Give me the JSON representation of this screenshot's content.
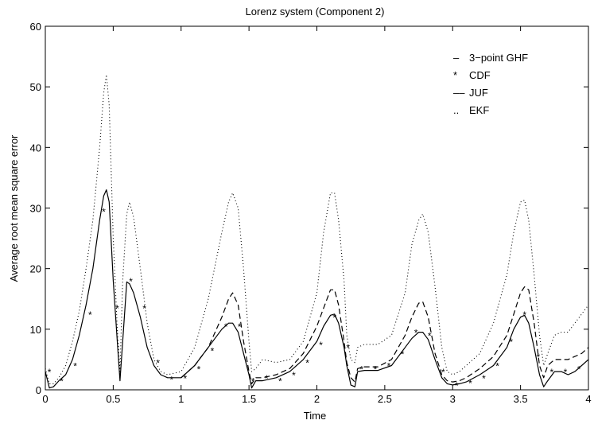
{
  "chart_data": {
    "type": "line",
    "title": "Lorenz system (Component 2)",
    "xlabel": "Time",
    "ylabel": "Average root mean square error",
    "xlim": [
      0,
      4
    ],
    "ylim": [
      0,
      60
    ],
    "xticks": [
      "0",
      "0.5",
      "1",
      "1.5",
      "2",
      "2.5",
      "3",
      "3.5",
      "4"
    ],
    "yticks": [
      "0",
      "10",
      "20",
      "30",
      "40",
      "50",
      "60"
    ],
    "grid": false,
    "legend_position": "top-right",
    "legend": [
      {
        "symbol": "–",
        "label": "3−point GHF"
      },
      {
        "symbol": "*",
        "label": "CDF"
      },
      {
        "symbol": "––",
        "label": "JUF"
      },
      {
        "symbol": "..",
        "label": "EKF"
      }
    ],
    "series": [
      {
        "name": "3−point GHF",
        "style": "solid",
        "x": [
          0,
          0.03,
          0.06,
          0.1,
          0.15,
          0.2,
          0.25,
          0.3,
          0.35,
          0.4,
          0.43,
          0.45,
          0.47,
          0.5,
          0.53,
          0.55,
          0.57,
          0.6,
          0.62,
          0.65,
          0.7,
          0.75,
          0.8,
          0.85,
          0.9,
          1.0,
          1.1,
          1.2,
          1.3,
          1.35,
          1.38,
          1.42,
          1.46,
          1.5,
          1.52,
          1.55,
          1.6,
          1.7,
          1.8,
          1.9,
          2.0,
          2.05,
          2.1,
          2.13,
          2.16,
          2.2,
          2.22,
          2.25,
          2.28,
          2.3,
          2.35,
          2.45,
          2.55,
          2.65,
          2.7,
          2.75,
          2.78,
          2.82,
          2.87,
          2.92,
          2.96,
          3.0,
          3.05,
          3.1,
          3.2,
          3.3,
          3.4,
          3.45,
          3.5,
          3.53,
          3.56,
          3.6,
          3.64,
          3.67,
          3.7,
          3.75,
          3.8,
          3.85,
          3.9,
          3.95,
          4.0
        ],
        "y": [
          3,
          0.3,
          0.5,
          1.5,
          2.5,
          5,
          9,
          14,
          20,
          28,
          32,
          33,
          31,
          18,
          8,
          1.5,
          8,
          17.8,
          17.5,
          16,
          12,
          7,
          4,
          2.5,
          2,
          2,
          4,
          7,
          10,
          11,
          11,
          9.5,
          6,
          2.5,
          0.3,
          1.5,
          1.5,
          2,
          3,
          5,
          8,
          10.5,
          12.3,
          12.5,
          11,
          7,
          4,
          0.8,
          0.5,
          3,
          3.2,
          3.2,
          4,
          7,
          8.5,
          9.5,
          9.5,
          8.3,
          5,
          2,
          1,
          0.8,
          1,
          1.3,
          2.5,
          4,
          7,
          10,
          12,
          12.3,
          11,
          7,
          2.5,
          0.5,
          1.5,
          3,
          3,
          2.5,
          3,
          4,
          5
        ]
      },
      {
        "name": "JUF",
        "style": "dashed",
        "x": [
          1.0,
          1.1,
          1.2,
          1.3,
          1.35,
          1.38,
          1.42,
          1.46,
          1.5,
          1.52,
          1.55,
          1.6,
          1.7,
          1.8,
          1.9,
          2.0,
          2.05,
          2.1,
          2.13,
          2.16,
          2.2,
          2.22,
          2.25,
          2.28,
          2.3,
          2.35,
          2.45,
          2.55,
          2.65,
          2.7,
          2.75,
          2.78,
          2.82,
          2.87,
          2.92,
          2.96,
          3.0,
          3.05,
          3.1,
          3.2,
          3.3,
          3.4,
          3.45,
          3.5,
          3.53,
          3.56,
          3.6,
          3.64,
          3.67,
          3.7,
          3.75,
          3.8,
          3.85,
          3.9,
          3.95,
          4.0
        ],
        "y": [
          2,
          4,
          7,
          12,
          15,
          16,
          14,
          8,
          3,
          1,
          2,
          2,
          2.5,
          3.5,
          6,
          10.5,
          13.5,
          16.5,
          16.5,
          14,
          8,
          4.5,
          2,
          1.3,
          3.5,
          3.8,
          3.8,
          5,
          9,
          12,
          14.3,
          14.5,
          12,
          6,
          2.5,
          1.5,
          1.3,
          1.5,
          2,
          3.5,
          5.5,
          9,
          12.5,
          16,
          17,
          16.5,
          11,
          4,
          2,
          4,
          5,
          5,
          5,
          5.5,
          6,
          7
        ]
      },
      {
        "name": "EKF",
        "style": "dotted",
        "x": [
          0,
          0.03,
          0.06,
          0.1,
          0.15,
          0.2,
          0.25,
          0.3,
          0.35,
          0.4,
          0.43,
          0.45,
          0.47,
          0.5,
          0.53,
          0.55,
          0.57,
          0.6,
          0.62,
          0.65,
          0.7,
          0.75,
          0.8,
          0.85,
          0.9,
          1.0,
          1.1,
          1.2,
          1.3,
          1.35,
          1.38,
          1.42,
          1.46,
          1.5,
          1.52,
          1.55,
          1.6,
          1.7,
          1.8,
          1.9,
          2.0,
          2.05,
          2.1,
          2.13,
          2.16,
          2.2,
          2.22,
          2.25,
          2.28,
          2.3,
          2.35,
          2.45,
          2.55,
          2.65,
          2.7,
          2.75,
          2.78,
          2.82,
          2.87,
          2.92,
          2.96,
          3.0,
          3.05,
          3.1,
          3.2,
          3.3,
          3.4,
          3.45,
          3.5,
          3.53,
          3.56,
          3.6,
          3.64,
          3.67,
          3.7,
          3.75,
          3.8,
          3.85,
          3.9,
          3.95,
          4.0
        ],
        "y": [
          3.5,
          1,
          1,
          2,
          4,
          8,
          13,
          20,
          28,
          40,
          49,
          52,
          47,
          25,
          10,
          3,
          18,
          29,
          31,
          28.5,
          20,
          11,
          5,
          3,
          2.5,
          3,
          7,
          15,
          26,
          31,
          32.5,
          30,
          20,
          8,
          3,
          3.5,
          5,
          4.5,
          5,
          8,
          16,
          26,
          32.5,
          32.5,
          28,
          18,
          9,
          5,
          4.5,
          7,
          7.5,
          7.5,
          9,
          16,
          24,
          28,
          29,
          26,
          17,
          7,
          3,
          2.5,
          3,
          4,
          6,
          11,
          19,
          26,
          31,
          31.3,
          28,
          19,
          9,
          4,
          6,
          9,
          9.5,
          9.5,
          11,
          12.5,
          14
        ]
      },
      {
        "name": "CDF",
        "style": "markers",
        "x": [
          0.03,
          0.12,
          0.22,
          0.33,
          0.43,
          0.53,
          0.63,
          0.73,
          0.83,
          0.93,
          1.03,
          1.13,
          1.23,
          1.33,
          1.43,
          1.53,
          1.63,
          1.73,
          1.83,
          1.93,
          2.03,
          2.13,
          2.23,
          2.33,
          2.43,
          2.53,
          2.63,
          2.73,
          2.83,
          2.93,
          3.03,
          3.13,
          3.23,
          3.33,
          3.43,
          3.53,
          3.63,
          3.73,
          3.83,
          3.93
        ],
        "y": [
          3,
          1.5,
          4,
          12.5,
          29.5,
          13.5,
          18,
          13.5,
          4.5,
          1.8,
          2,
          3.5,
          6.5,
          10.5,
          10.5,
          1.5,
          2,
          1.5,
          2.5,
          4.5,
          7.5,
          12,
          7,
          3.5,
          3.5,
          4,
          6,
          9.5,
          9,
          3,
          0.8,
          1.2,
          2,
          4,
          8,
          12.5,
          5.5,
          3,
          3,
          3.5
        ]
      }
    ]
  }
}
